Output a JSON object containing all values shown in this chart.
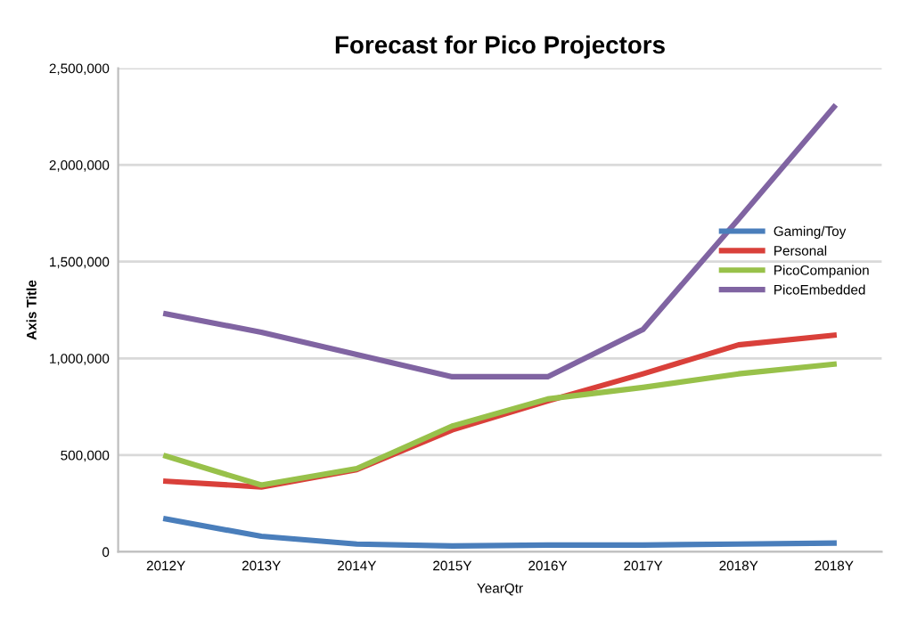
{
  "chart_data": {
    "type": "line",
    "title": "Forecast for Pico Projectors",
    "xlabel": "YearQtr",
    "ylabel": "Axis Title",
    "categories": [
      "2012Y",
      "2013Y",
      "2014Y",
      "2015Y",
      "2016Y",
      "2017Y",
      "2018Y",
      "2018Y"
    ],
    "series": [
      {
        "name": "Gaming/Toy",
        "color": "#4a7ebb",
        "values": [
          170000,
          80000,
          40000,
          30000,
          35000,
          35000,
          40000,
          45000
        ]
      },
      {
        "name": "Personal",
        "color": "#d9403a",
        "values": [
          365000,
          335000,
          425000,
          630000,
          780000,
          920000,
          1070000,
          1120000
        ]
      },
      {
        "name": "PicoCompanion",
        "color": "#98c14a",
        "values": [
          495000,
          345000,
          430000,
          650000,
          790000,
          850000,
          920000,
          970000
        ]
      },
      {
        "name": "PicoEmbedded",
        "color": "#8064a2",
        "values": [
          1230000,
          1135000,
          1020000,
          905000,
          905000,
          1150000,
          1720000,
          2300000
        ]
      }
    ],
    "ylim": [
      0,
      2500000
    ],
    "yticks": [
      {
        "value": 0,
        "label": "0"
      },
      {
        "value": 500000,
        "label": "500,000"
      },
      {
        "value": 1000000,
        "label": "1,000,000"
      },
      {
        "value": 1500000,
        "label": "1,500,000"
      },
      {
        "value": 2000000,
        "label": "2,000,000"
      },
      {
        "value": 2500000,
        "label": "2,500,000"
      }
    ],
    "grid": "y",
    "legend": "right",
    "marker": "none",
    "line_style": "solid"
  }
}
